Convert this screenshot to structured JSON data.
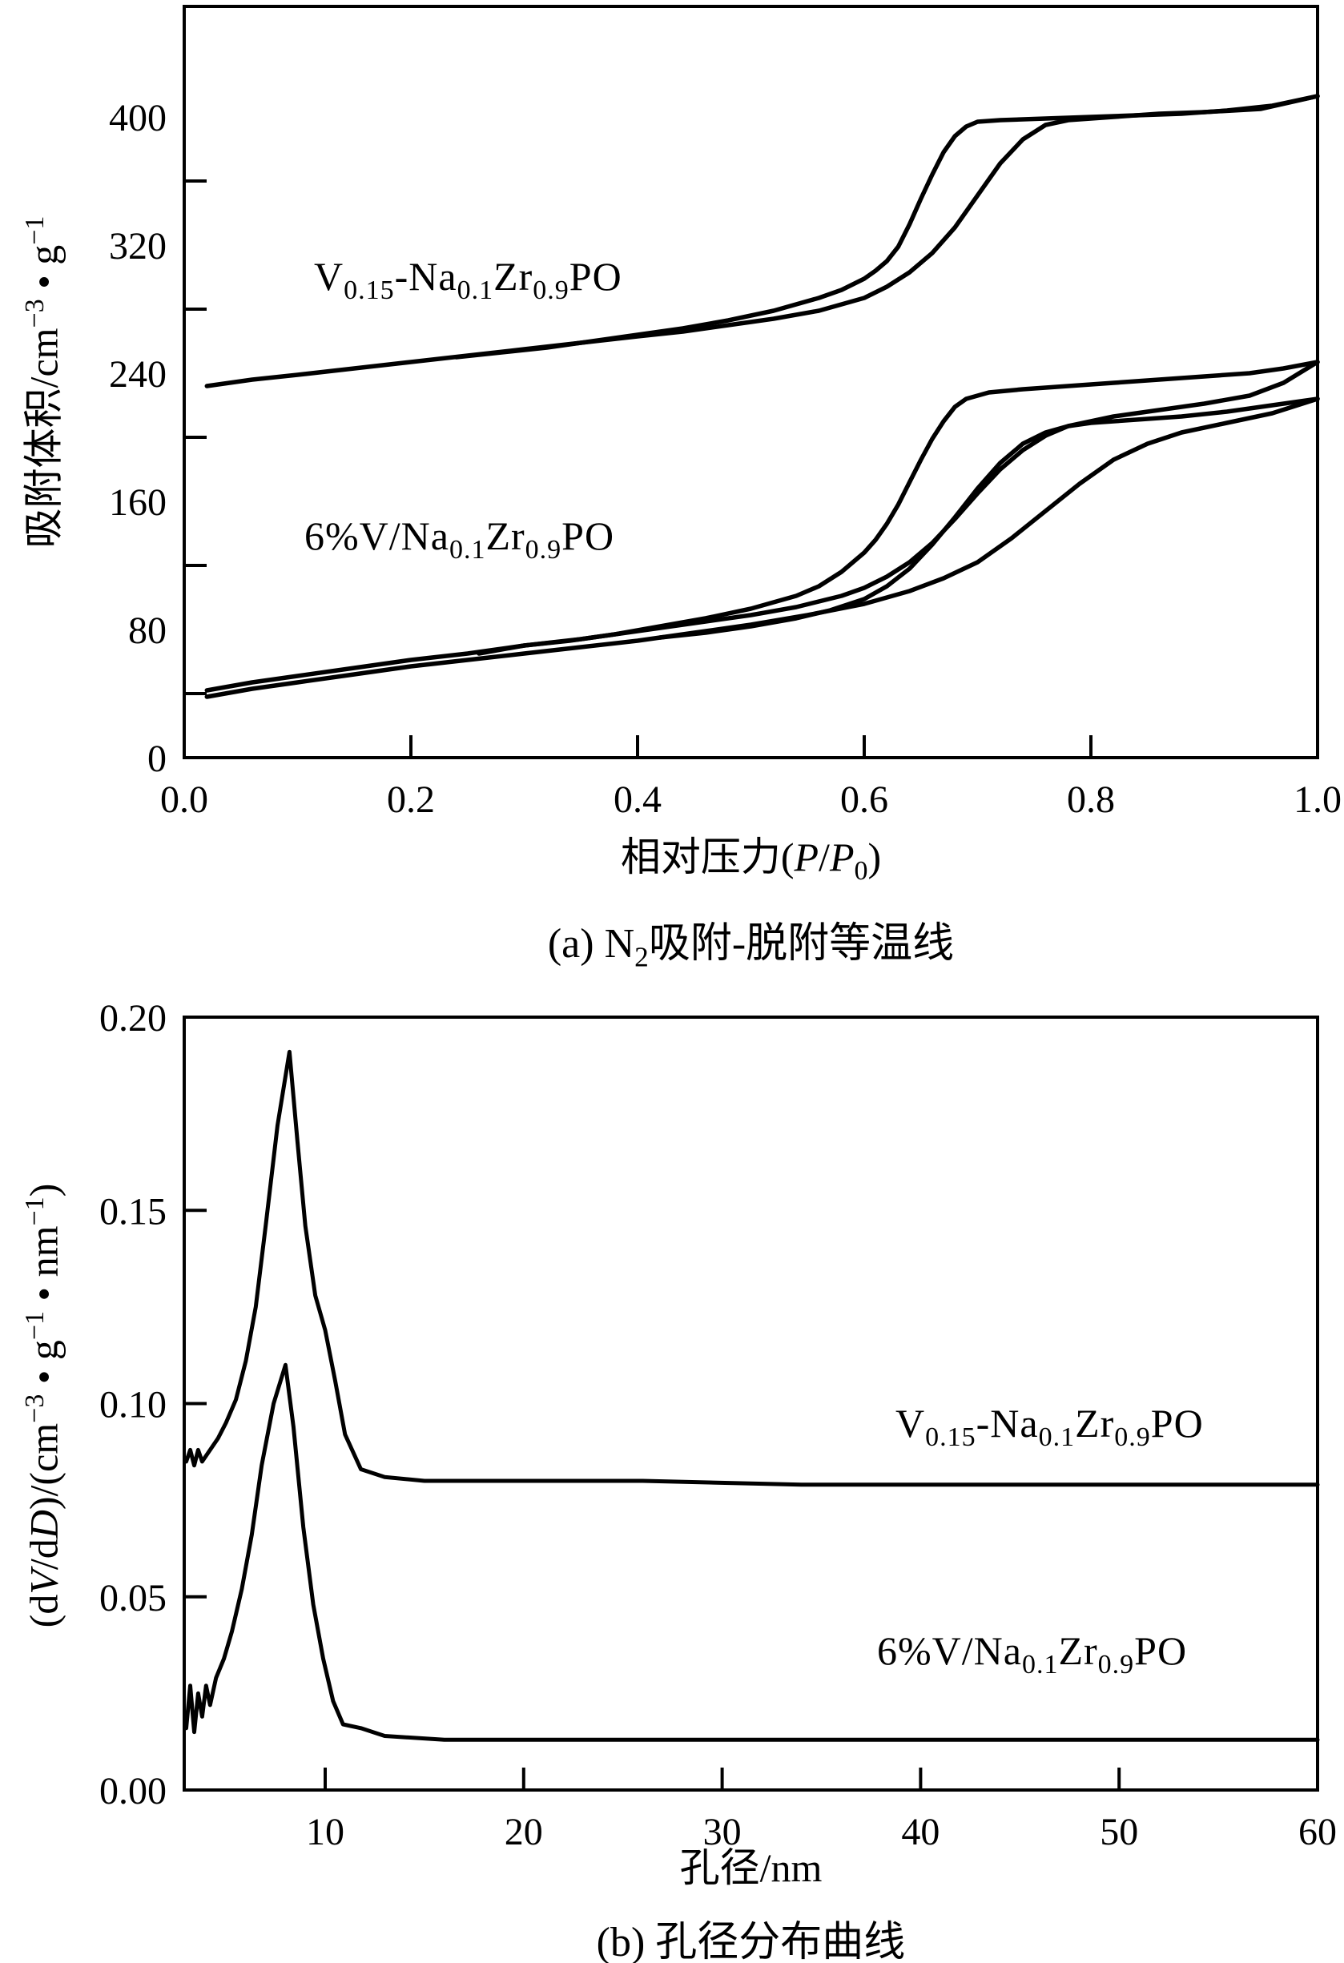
{
  "page": {
    "background": "#ffffff",
    "ink": "#000000"
  },
  "panel_a": {
    "caption": "(a) N~2~吸附-脱附等温线",
    "x_title": "相对压力(*P*/*P*~0~)",
    "y_title": "吸附体积/cm^−3^ • g^−1^",
    "curve_label_1": "V~0.15~-Na~0.1~Zr~0.9~PO",
    "curve_label_2": "6%V/Na~0.1~Zr~0.9~PO"
  },
  "panel_b": {
    "caption": "(b) 孔径分布曲线",
    "x_title": "孔径/nm",
    "y_title": "(d*V*/d*D*)/(cm^−3^ • g^−1^ • nm^−1^)",
    "curve_label_1": "V~0.15~-Na~0.1~Zr~0.9~PO",
    "curve_label_2": "6%V/Na~0.1~Zr~0.9~PO"
  },
  "chart_data": [
    {
      "type": "line",
      "title": "(a) N2吸附-脱附等温线",
      "xlabel": "相对压力(P/P0)",
      "ylabel": "吸附体积/cm−3 • g−1",
      "xlim": [
        0.0,
        1.0
      ],
      "ylim": [
        0,
        470
      ],
      "grid": false,
      "legend": "none (curve labels drawn beside curves)",
      "x_tick_labels": [
        {
          "v": 0.0,
          "t": "0.0"
        },
        {
          "v": 0.2,
          "t": "0.2"
        },
        {
          "v": 0.4,
          "t": "0.4"
        },
        {
          "v": 0.6,
          "t": "0.6"
        },
        {
          "v": 0.8,
          "t": "0.8"
        },
        {
          "v": 1.0,
          "t": "1.0"
        }
      ],
      "x_tick_marks": [
        0.2,
        0.4,
        0.6,
        0.8
      ],
      "y_tick_labels": [
        {
          "v": 0,
          "t": "0"
        },
        {
          "v": 80,
          "t": "80"
        },
        {
          "v": 160,
          "t": "160"
        },
        {
          "v": 240,
          "t": "240"
        },
        {
          "v": 320,
          "t": "320"
        },
        {
          "v": 400,
          "t": "400"
        }
      ],
      "y_tick_marks": [
        40,
        120,
        200,
        280,
        360
      ],
      "series": [
        {
          "name": "V0.15-Na0.1Zr0.9PO adsorption",
          "points": [
            [
              0.02,
              232
            ],
            [
              0.06,
              236
            ],
            [
              0.1,
              239
            ],
            [
              0.15,
              243
            ],
            [
              0.2,
              247
            ],
            [
              0.25,
              251
            ],
            [
              0.3,
              255
            ],
            [
              0.35,
              259
            ],
            [
              0.4,
              263
            ],
            [
              0.44,
              266
            ],
            [
              0.48,
              270
            ],
            [
              0.52,
              274
            ],
            [
              0.56,
              279
            ],
            [
              0.6,
              287
            ],
            [
              0.62,
              294
            ],
            [
              0.64,
              303
            ],
            [
              0.66,
              315
            ],
            [
              0.68,
              331
            ],
            [
              0.7,
              351
            ],
            [
              0.72,
              371
            ],
            [
              0.74,
              386
            ],
            [
              0.76,
              395
            ],
            [
              0.78,
              398
            ],
            [
              0.82,
              400
            ],
            [
              0.86,
              402
            ],
            [
              0.9,
              403
            ],
            [
              0.95,
              405
            ],
            [
              1.0,
              413
            ]
          ]
        },
        {
          "name": "V0.15-Na0.1Zr0.9PO desorption",
          "points": [
            [
              1.0,
              413
            ],
            [
              0.96,
              407
            ],
            [
              0.92,
              404
            ],
            [
              0.88,
              402
            ],
            [
              0.84,
              401
            ],
            [
              0.8,
              400
            ],
            [
              0.76,
              399
            ],
            [
              0.72,
              398
            ],
            [
              0.7,
              397
            ],
            [
              0.69,
              394
            ],
            [
              0.68,
              388
            ],
            [
              0.67,
              378
            ],
            [
              0.66,
              364
            ],
            [
              0.65,
              349
            ],
            [
              0.64,
              333
            ],
            [
              0.63,
              319
            ],
            [
              0.62,
              310
            ],
            [
              0.61,
              304
            ],
            [
              0.6,
              299
            ],
            [
              0.58,
              292
            ],
            [
              0.56,
              287
            ],
            [
              0.52,
              279
            ],
            [
              0.48,
              273
            ],
            [
              0.44,
              268
            ],
            [
              0.4,
              264
            ],
            [
              0.36,
              260
            ],
            [
              0.32,
              256
            ],
            [
              0.28,
              253
            ],
            [
              0.24,
              250
            ]
          ]
        },
        {
          "name": "6%V/Na0.1Zr0.9PO adsorption 1",
          "points": [
            [
              0.02,
              42
            ],
            [
              0.06,
              47
            ],
            [
              0.1,
              51
            ],
            [
              0.15,
              56
            ],
            [
              0.2,
              61
            ],
            [
              0.25,
              65
            ],
            [
              0.3,
              70
            ],
            [
              0.35,
              74
            ],
            [
              0.4,
              79
            ],
            [
              0.45,
              84
            ],
            [
              0.5,
              89
            ],
            [
              0.54,
              94
            ],
            [
              0.58,
              101
            ],
            [
              0.6,
              106
            ],
            [
              0.62,
              113
            ],
            [
              0.64,
              122
            ],
            [
              0.66,
              134
            ],
            [
              0.68,
              149
            ],
            [
              0.7,
              165
            ],
            [
              0.72,
              180
            ],
            [
              0.74,
              192
            ],
            [
              0.76,
              201
            ],
            [
              0.78,
              207
            ],
            [
              0.82,
              213
            ],
            [
              0.86,
              217
            ],
            [
              0.9,
              221
            ],
            [
              0.94,
              226
            ],
            [
              0.97,
              234
            ],
            [
              1.0,
              247
            ]
          ]
        },
        {
          "name": "6%V/Na0.1Zr0.9PO desorption 1",
          "points": [
            [
              1.0,
              247
            ],
            [
              0.97,
              243
            ],
            [
              0.94,
              240
            ],
            [
              0.9,
              238
            ],
            [
              0.86,
              236
            ],
            [
              0.82,
              234
            ],
            [
              0.78,
              232
            ],
            [
              0.74,
              230
            ],
            [
              0.71,
              228
            ],
            [
              0.69,
              224
            ],
            [
              0.68,
              219
            ],
            [
              0.67,
              210
            ],
            [
              0.66,
              199
            ],
            [
              0.65,
              186
            ],
            [
              0.64,
              172
            ],
            [
              0.63,
              158
            ],
            [
              0.62,
              146
            ],
            [
              0.61,
              136
            ],
            [
              0.6,
              128
            ],
            [
              0.58,
              116
            ],
            [
              0.56,
              107
            ],
            [
              0.54,
              101
            ],
            [
              0.5,
              93
            ],
            [
              0.46,
              87
            ],
            [
              0.42,
              82
            ],
            [
              0.38,
              77
            ],
            [
              0.34,
              73
            ],
            [
              0.3,
              70
            ],
            [
              0.26,
              65
            ]
          ]
        },
        {
          "name": "6%V/Na0.1Zr0.9PO adsorption 2",
          "points": [
            [
              0.02,
              38
            ],
            [
              0.06,
              43
            ],
            [
              0.1,
              47
            ],
            [
              0.15,
              52
            ],
            [
              0.2,
              57
            ],
            [
              0.25,
              61
            ],
            [
              0.3,
              65
            ],
            [
              0.35,
              69
            ],
            [
              0.4,
              73
            ],
            [
              0.45,
              78
            ],
            [
              0.5,
              83
            ],
            [
              0.55,
              89
            ],
            [
              0.6,
              96
            ],
            [
              0.64,
              104
            ],
            [
              0.67,
              112
            ],
            [
              0.7,
              122
            ],
            [
              0.73,
              137
            ],
            [
              0.76,
              154
            ],
            [
              0.79,
              171
            ],
            [
              0.82,
              186
            ],
            [
              0.85,
              196
            ],
            [
              0.88,
              203
            ],
            [
              0.92,
              209
            ],
            [
              0.96,
              215
            ],
            [
              1.0,
              224
            ]
          ]
        },
        {
          "name": "6%V/Na0.1Zr0.9PO desorption 2",
          "points": [
            [
              1.0,
              224
            ],
            [
              0.96,
              220
            ],
            [
              0.92,
              216
            ],
            [
              0.88,
              213
            ],
            [
              0.84,
              211
            ],
            [
              0.8,
              209
            ],
            [
              0.78,
              207
            ],
            [
              0.76,
              203
            ],
            [
              0.74,
              196
            ],
            [
              0.72,
              184
            ],
            [
              0.7,
              168
            ],
            [
              0.68,
              150
            ],
            [
              0.66,
              133
            ],
            [
              0.64,
              118
            ],
            [
              0.62,
              107
            ],
            [
              0.6,
              99
            ],
            [
              0.57,
              92
            ],
            [
              0.54,
              87
            ],
            [
              0.5,
              82
            ],
            [
              0.46,
              78
            ],
            [
              0.42,
              75
            ]
          ]
        }
      ]
    },
    {
      "type": "line",
      "title": "(b) 孔径分布曲线",
      "xlabel": "孔径/nm",
      "ylabel": "(dV/dD)/(cm−3 • g−1 • nm−1)",
      "xlim": [
        3,
        60
      ],
      "ylim": [
        0.0,
        0.2
      ],
      "grid": false,
      "legend": "none (curve labels drawn beside curves)",
      "x_tick_labels": [
        {
          "v": 10,
          "t": "10"
        },
        {
          "v": 20,
          "t": "20"
        },
        {
          "v": 30,
          "t": "30"
        },
        {
          "v": 40,
          "t": "40"
        },
        {
          "v": 50,
          "t": "50"
        },
        {
          "v": 60,
          "t": "60"
        }
      ],
      "x_tick_marks": [
        10,
        20,
        30,
        40,
        50
      ],
      "y_tick_labels": [
        {
          "v": 0.0,
          "t": "0.00"
        },
        {
          "v": 0.05,
          "t": "0.05"
        },
        {
          "v": 0.1,
          "t": "0.10"
        },
        {
          "v": 0.15,
          "t": "0.15"
        },
        {
          "v": 0.2,
          "t": "0.20"
        }
      ],
      "y_tick_marks": [
        0.05,
        0.1,
        0.15
      ],
      "series": [
        {
          "name": "V0.15-Na0.1Zr0.9PO pore size distribution",
          "points": [
            [
              3,
              0.085
            ],
            [
              3.2,
              0.088
            ],
            [
              3.4,
              0.084
            ],
            [
              3.6,
              0.088
            ],
            [
              3.8,
              0.085
            ],
            [
              4.2,
              0.088
            ],
            [
              4.6,
              0.091
            ],
            [
              5,
              0.095
            ],
            [
              5.5,
              0.101
            ],
            [
              6,
              0.111
            ],
            [
              6.5,
              0.125
            ],
            [
              7,
              0.146
            ],
            [
              7.6,
              0.172
            ],
            [
              8.2,
              0.191
            ],
            [
              8.6,
              0.168
            ],
            [
              9,
              0.146
            ],
            [
              9.5,
              0.128
            ],
            [
              10,
              0.119
            ],
            [
              10.5,
              0.106
            ],
            [
              11,
              0.092
            ],
            [
              11.8,
              0.083
            ],
            [
              13,
              0.081
            ],
            [
              15,
              0.08
            ],
            [
              20,
              0.08
            ],
            [
              26,
              0.08
            ],
            [
              34,
              0.079
            ],
            [
              44,
              0.079
            ],
            [
              60,
              0.079
            ]
          ]
        },
        {
          "name": "6%V/Na0.1Zr0.9PO pore size distribution",
          "points": [
            [
              3,
              0.016
            ],
            [
              3.2,
              0.027
            ],
            [
              3.4,
              0.015
            ],
            [
              3.6,
              0.025
            ],
            [
              3.8,
              0.019
            ],
            [
              4,
              0.027
            ],
            [
              4.2,
              0.022
            ],
            [
              4.5,
              0.029
            ],
            [
              4.9,
              0.034
            ],
            [
              5.3,
              0.041
            ],
            [
              5.8,
              0.052
            ],
            [
              6.3,
              0.066
            ],
            [
              6.8,
              0.084
            ],
            [
              7.4,
              0.1
            ],
            [
              8,
              0.11
            ],
            [
              8.4,
              0.094
            ],
            [
              8.9,
              0.068
            ],
            [
              9.4,
              0.048
            ],
            [
              9.9,
              0.034
            ],
            [
              10.4,
              0.023
            ],
            [
              10.9,
              0.017
            ],
            [
              11.8,
              0.016
            ],
            [
              13,
              0.014
            ],
            [
              16,
              0.013
            ],
            [
              22,
              0.013
            ],
            [
              30,
              0.013
            ],
            [
              40,
              0.013
            ],
            [
              50,
              0.013
            ],
            [
              60,
              0.013
            ]
          ]
        }
      ]
    }
  ]
}
